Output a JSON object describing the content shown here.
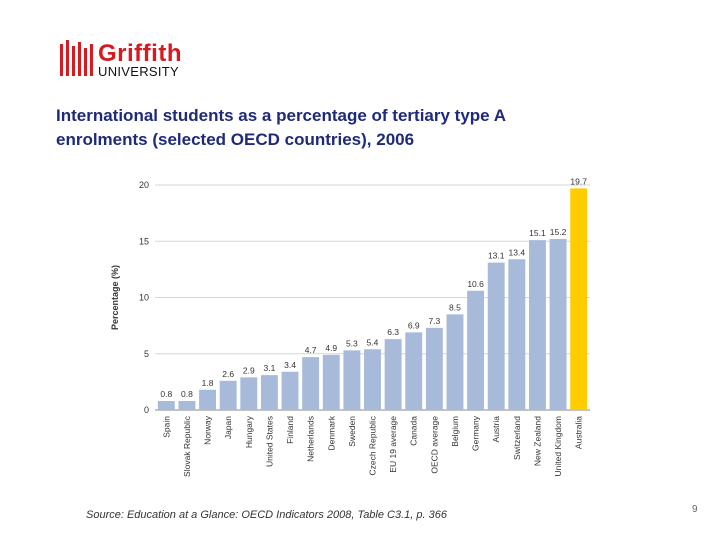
{
  "logo": {
    "name": "Griffith",
    "sub": "UNIVERSITY"
  },
  "title_line1": "International students as a percentage of tertiary type A",
  "title_line2": "enrolments (selected OECD countries), 2006",
  "source": "Source: Education at a Glance: OECD Indicators 2008, Table C3.1, p. 366",
  "page_number": "9",
  "colors": {
    "bar": "#a7bad9",
    "highlight": "#ffcc00",
    "title": "#1f2a7a",
    "brand": "#d71920"
  },
  "chart_data": {
    "type": "bar",
    "title": "",
    "xlabel": "",
    "ylabel": "Percentage (%)",
    "ylim": [
      0,
      20
    ],
    "yticks": [
      0,
      5,
      10,
      15,
      20
    ],
    "grid": true,
    "categories": [
      "Spain",
      "Slovak Republic",
      "Norway",
      "Japan",
      "Hungary",
      "United States",
      "Finland",
      "Netherlands",
      "Denmark",
      "Sweden",
      "Czech Republic",
      "EU 19 average",
      "Canada",
      "OECD average",
      "Belgium",
      "Germany",
      "Austria",
      "Switzerland",
      "New Zealand",
      "United Kingdom",
      "Australia"
    ],
    "values": [
      0.8,
      0.8,
      1.8,
      2.6,
      2.9,
      3.1,
      3.4,
      4.7,
      4.9,
      5.3,
      5.4,
      6.3,
      6.9,
      7.3,
      8.5,
      10.6,
      13.1,
      13.4,
      15.1,
      15.2,
      19.7
    ],
    "highlight": "Australia"
  }
}
